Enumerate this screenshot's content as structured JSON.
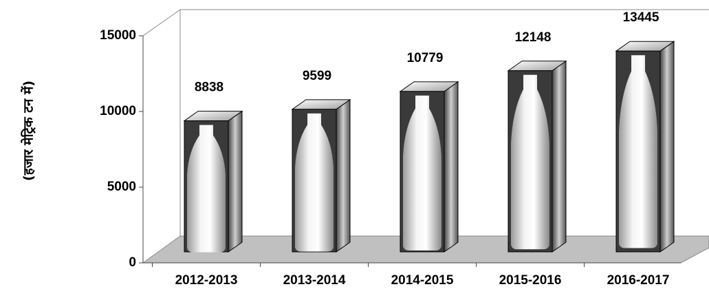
{
  "chart_data": {
    "type": "bar3d",
    "y_label": "(हजार मेट्रिक टन में)",
    "categories": [
      "2012-2013",
      "2013-2014",
      "2014-2015",
      "2015-2016",
      "2016-2017"
    ],
    "values": [
      8838,
      9599,
      10779,
      12148,
      13445
    ],
    "ylim": [
      0,
      15000
    ],
    "yticks": [
      0,
      5000,
      10000,
      15000
    ]
  }
}
